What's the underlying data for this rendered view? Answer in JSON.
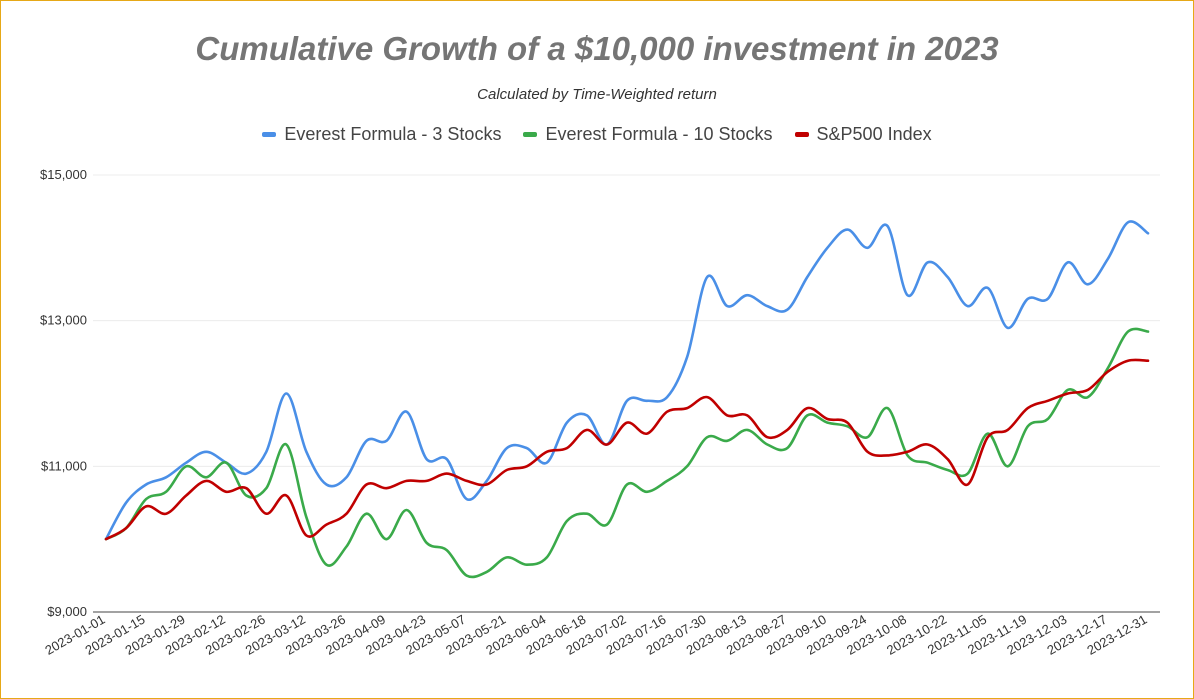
{
  "colors": {
    "border": "#e6a817",
    "grid": "#ececec",
    "series": [
      "#4a8fe7",
      "#3aaa4a",
      "#c00000"
    ]
  },
  "chart_data": {
    "type": "line",
    "title": "Cumulative Growth of a $10,000 investment in 2023",
    "subtitle": "Calculated by Time-Weighted return",
    "xlabel": "",
    "ylabel": "",
    "ylim": [
      9000,
      15000
    ],
    "y_ticks": [
      "$9,000",
      "$11,000",
      "$13,000",
      "$15,000"
    ],
    "y_tick_values": [
      9000,
      11000,
      13000,
      15000
    ],
    "x_tick_labels": [
      "2023-01-01",
      "2023-01-15",
      "2023-01-29",
      "2023-02-12",
      "2023-02-26",
      "2023-03-12",
      "2023-03-26",
      "2023-04-09",
      "2023-04-23",
      "2023-05-07",
      "2023-05-21",
      "2023-06-04",
      "2023-06-18",
      "2023-07-02",
      "2023-07-16",
      "2023-07-30",
      "2023-08-13",
      "2023-08-27",
      "2023-09-10",
      "2023-09-24",
      "2023-10-08",
      "2023-10-22",
      "2023-11-05",
      "2023-11-19",
      "2023-12-03",
      "2023-12-17",
      "2023-12-31"
    ],
    "grid": true,
    "legend_position": "top",
    "x": [
      "2023-01-01",
      "2023-01-08",
      "2023-01-15",
      "2023-01-22",
      "2023-01-29",
      "2023-02-05",
      "2023-02-12",
      "2023-02-19",
      "2023-02-26",
      "2023-03-05",
      "2023-03-12",
      "2023-03-19",
      "2023-03-26",
      "2023-04-02",
      "2023-04-09",
      "2023-04-16",
      "2023-04-23",
      "2023-04-30",
      "2023-05-07",
      "2023-05-14",
      "2023-05-21",
      "2023-05-28",
      "2023-06-04",
      "2023-06-11",
      "2023-06-18",
      "2023-06-25",
      "2023-07-02",
      "2023-07-09",
      "2023-07-16",
      "2023-07-23",
      "2023-07-30",
      "2023-08-06",
      "2023-08-13",
      "2023-08-20",
      "2023-08-27",
      "2023-09-03",
      "2023-09-10",
      "2023-09-17",
      "2023-09-24",
      "2023-10-01",
      "2023-10-08",
      "2023-10-15",
      "2023-10-22",
      "2023-10-29",
      "2023-11-05",
      "2023-11-12",
      "2023-11-19",
      "2023-11-26",
      "2023-12-03",
      "2023-12-10",
      "2023-12-17",
      "2023-12-24",
      "2023-12-31"
    ],
    "series": [
      {
        "name": "Everest Formula - 3 Stocks",
        "values": [
          10000,
          10500,
          10750,
          10850,
          11050,
          11200,
          11050,
          10900,
          11200,
          12000,
          11200,
          10750,
          10850,
          11350,
          11350,
          11750,
          11100,
          11100,
          10550,
          10800,
          11250,
          11250,
          11050,
          11600,
          11700,
          11300,
          11900,
          11900,
          11950,
          12500,
          13600,
          13200,
          13350,
          13200,
          13150,
          13600,
          14000,
          14250,
          14000,
          14300,
          13350,
          13800,
          13600,
          13200,
          13450,
          12900,
          13300,
          13300,
          13800,
          13500,
          13850,
          14350,
          14200
        ]
      },
      {
        "name": "Everest Formula - 10 Stocks",
        "values": [
          10000,
          10150,
          10550,
          10650,
          11000,
          10850,
          11050,
          10600,
          10700,
          11300,
          10300,
          9650,
          9900,
          10350,
          10000,
          10400,
          9950,
          9850,
          9500,
          9550,
          9750,
          9650,
          9750,
          10250,
          10350,
          10200,
          10750,
          10650,
          10800,
          11000,
          11400,
          11350,
          11500,
          11300,
          11250,
          11700,
          11600,
          11550,
          11400,
          11800,
          11150,
          11050,
          10950,
          10900,
          11450,
          11000,
          11550,
          11650,
          12050,
          11950,
          12350,
          12850,
          12850
        ]
      },
      {
        "name": "S&P500 Index",
        "values": [
          10000,
          10150,
          10450,
          10350,
          10600,
          10800,
          10650,
          10700,
          10350,
          10600,
          10050,
          10200,
          10350,
          10750,
          10700,
          10800,
          10800,
          10900,
          10800,
          10750,
          10950,
          11000,
          11200,
          11250,
          11500,
          11300,
          11600,
          11450,
          11750,
          11800,
          11950,
          11700,
          11700,
          11400,
          11500,
          11800,
          11650,
          11600,
          11200,
          11150,
          11200,
          11300,
          11100,
          10750,
          11400,
          11500,
          11800,
          11900,
          12000,
          12050,
          12300,
          12450,
          12450
        ]
      }
    ]
  }
}
